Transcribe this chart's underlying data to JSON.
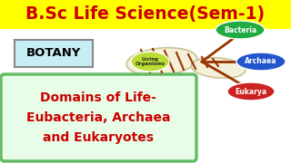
{
  "title": "B.Sc Life Science(Sem-1)",
  "title_color": "#cc0000",
  "title_bg": "#ffff00",
  "title_fontsize": 13.5,
  "botany_label": "BOTANY",
  "botany_bg": "#c8eef5",
  "botany_border": "#888888",
  "subtitle_line1": "Domains of Life-",
  "subtitle_line2": "Eubacteria, Archaea",
  "subtitle_line3": "and Eukaryotes",
  "subtitle_color": "#cc0000",
  "subtitle_bg": "#e8fde8",
  "subtitle_border": "#66bb66",
  "living_label": "Living\nOrganisms",
  "living_color": "#bbdd33",
  "bacteria_label": "Bacteria",
  "bacteria_color": "#22aa44",
  "archaea_label": "Archaea",
  "archaea_color": "#2255cc",
  "eukarya_label": "Eukarya",
  "eukarya_color": "#cc2222",
  "helix_fill": "#f5f0d8",
  "helix_stroke": "#c8c090",
  "helix_cross": "#993300",
  "branch_color": "#993300",
  "bg_color": "#ffffff"
}
